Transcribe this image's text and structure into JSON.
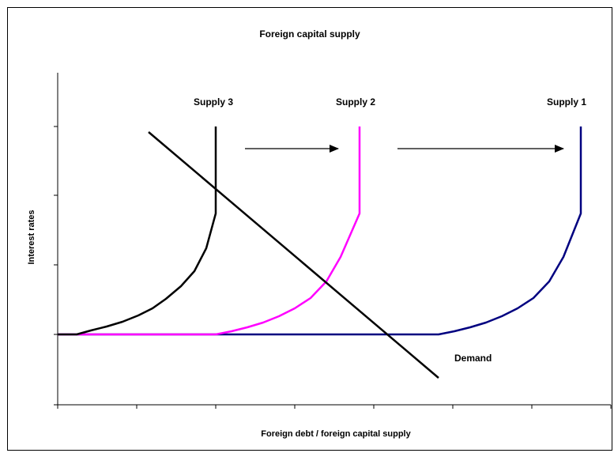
{
  "title": "Foreign capital supply",
  "axes": {
    "x_label": "Foreign debt / foreign capital supply",
    "y_label": "Interest rates"
  },
  "curves": {
    "supply_1": "Supply 1",
    "supply_2": "Supply 2",
    "supply_3": "Supply 3",
    "demand": "Demand"
  }
}
